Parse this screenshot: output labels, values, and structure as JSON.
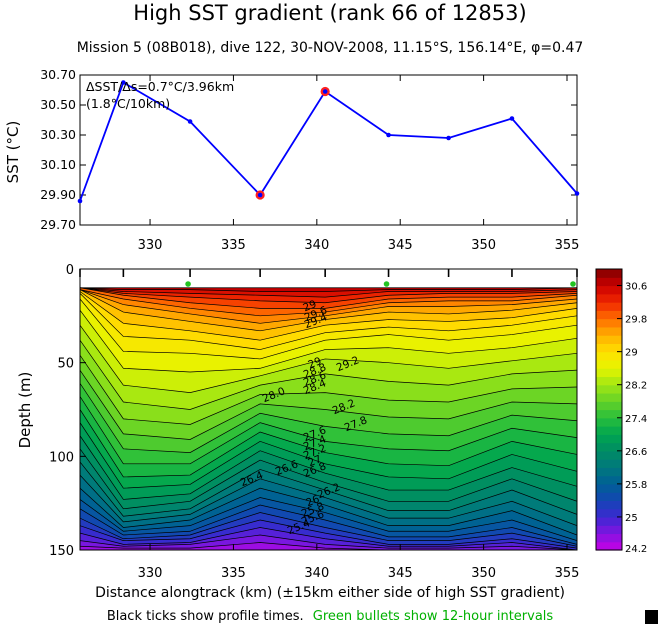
{
  "header": {
    "title": "High SST gradient (rank 66 of 12853)",
    "subtitle": "Mission 5 (08B018),  dive 122,  30-NOV-2008,  11.15°S, 156.14°E,  φ=0.47"
  },
  "footer": {
    "note_black": "Black ticks show profile times.",
    "note_green": "Green bullets show 12-hour intervals"
  },
  "colors": {
    "line": "#0000ff",
    "highlight": "#ff2020",
    "green_bullet": "#22c422",
    "note_green": "#00b000"
  },
  "chart_data": [
    {
      "type": "line",
      "annotation_1": "ΔSST/Δs=0.7°C/3.96km",
      "annotation_2": "(1.8°C/10km)",
      "ylabel": "SST (°C)",
      "xlim": [
        325.8,
        355.6
      ],
      "ylim": [
        29.7,
        30.7
      ],
      "yticks": [
        "29.70",
        "29.90",
        "30.10",
        "30.30",
        "30.50",
        "30.70"
      ],
      "xticks": [
        "330",
        "335",
        "340",
        "345",
        "350",
        "355"
      ],
      "series": [
        {
          "x": [
            325.8,
            328.4,
            332.4,
            336.6,
            340.5,
            344.3,
            347.9,
            351.7,
            355.6
          ],
          "y": [
            29.86,
            30.65,
            30.39,
            29.9,
            30.59,
            30.3,
            30.28,
            30.41,
            29.91
          ]
        }
      ],
      "highlighted_x": [
        336.6,
        340.5
      ]
    },
    {
      "type": "heatmap",
      "xlabel": "Distance alongtrack (km) (±15km either side of high SST gradient)",
      "ylabel": "Depth (m)",
      "xlim": [
        325.8,
        355.6
      ],
      "ylim": [
        150,
        0
      ],
      "xticks": [
        "330",
        "335",
        "340",
        "345",
        "350",
        "355"
      ],
      "yticks": [
        "0",
        "50",
        "100",
        "150"
      ],
      "profile_x": [
        325.8,
        328.4,
        332.4,
        336.6,
        340.5,
        344.3,
        347.9,
        351.7,
        355.6
      ],
      "green_bullet_x": [
        332.4,
        344.3,
        355.6
      ],
      "contour_labels": [
        "29",
        "29.6",
        "29.4",
        "29.2",
        "29",
        "28.8",
        "28.6",
        "28.4",
        "28.0",
        "28.2",
        "27.8",
        "27.6",
        "27.4",
        "27.2",
        "27",
        "26.8",
        "26.6",
        "26.4",
        "26.2",
        "26",
        "25.8",
        "25.6",
        "25.4"
      ],
      "colorbar": {
        "min": 24.2,
        "max": 31.0,
        "ticks": [
          "30.6",
          "29.8",
          "29",
          "28.2",
          "27.4",
          "26.6",
          "25.8",
          "25",
          "24.2"
        ]
      },
      "isotherms": {
        "levels": [
          30.8,
          30.6,
          30.4,
          30.2,
          30.0,
          29.8,
          29.6,
          29.4,
          29.2,
          29.0,
          28.8,
          28.6,
          28.4,
          28.2,
          28.0,
          27.8,
          27.6,
          27.4,
          27.2,
          27.0,
          26.8,
          26.6,
          26.4,
          26.2,
          26.0,
          25.8,
          25.6,
          25.4,
          25.2,
          25.0,
          24.8,
          24.6,
          24.4
        ],
        "depths": [
          [
            10,
            10,
            10,
            10,
            10,
            11,
            11,
            11,
            12,
            13,
            16,
            22,
            30,
            38,
            46,
            54,
            61,
            68,
            75,
            82,
            89,
            96,
            103,
            110,
            117,
            123,
            128,
            133,
            137,
            141,
            145,
            148,
            150
          ],
          [
            10,
            11,
            12,
            13,
            14,
            16,
            19,
            23,
            29,
            36,
            44,
            53,
            62,
            71,
            80,
            88,
            96,
            104,
            111,
            117,
            123,
            128,
            132,
            135,
            138,
            140,
            142,
            144,
            145,
            147,
            148,
            149,
            150
          ],
          [
            10,
            11,
            13,
            15,
            18,
            21,
            24,
            28,
            33,
            38,
            45,
            55,
            66,
            75,
            83,
            91,
            98,
            104,
            110,
            115,
            120,
            124,
            128,
            131,
            134,
            137,
            140,
            142,
            144,
            146,
            147,
            149,
            150
          ],
          [
            10,
            12,
            14,
            17,
            21,
            25,
            29,
            33,
            38,
            43,
            48,
            53,
            57,
            62,
            67,
            72,
            77,
            82,
            87,
            92,
            97,
            102,
            107,
            112,
            117,
            122,
            126,
            130,
            134,
            138,
            142,
            146,
            150
          ],
          [
            10,
            12,
            15,
            18,
            21,
            23,
            25,
            27,
            30,
            34,
            38,
            43,
            48,
            56,
            66,
            75,
            84,
            92,
            98,
            104,
            109,
            114,
            118,
            122,
            126,
            130,
            134,
            138,
            141,
            144,
            147,
            149,
            150
          ],
          [
            10,
            11,
            12,
            14,
            16,
            18,
            20,
            23,
            27,
            31,
            35,
            42,
            50,
            60,
            70,
            79,
            88,
            96,
            104,
            111,
            118,
            124,
            129,
            133,
            137,
            140,
            143,
            145,
            147,
            148,
            149,
            150,
            150
          ],
          [
            10,
            11,
            12,
            13,
            15,
            17,
            20,
            24,
            28,
            33,
            38,
            45,
            53,
            62,
            71,
            80,
            89,
            97,
            105,
            112,
            118,
            124,
            129,
            133,
            137,
            140,
            143,
            145,
            147,
            148,
            149,
            150,
            150
          ],
          [
            10,
            11,
            12,
            13,
            15,
            17,
            19,
            22,
            26,
            30,
            35,
            42,
            49,
            56,
            64,
            71,
            78,
            85,
            92,
            99,
            106,
            112,
            118,
            124,
            129,
            134,
            138,
            141,
            144,
            146,
            148,
            150,
            150
          ],
          [
            10,
            10,
            11,
            12,
            13,
            14,
            16,
            18,
            21,
            25,
            30,
            37,
            45,
            54,
            63,
            72,
            81,
            90,
            99,
            108,
            116,
            124,
            131,
            137,
            142,
            145,
            147,
            148,
            149,
            150,
            150,
            150,
            150
          ]
        ]
      }
    }
  ]
}
